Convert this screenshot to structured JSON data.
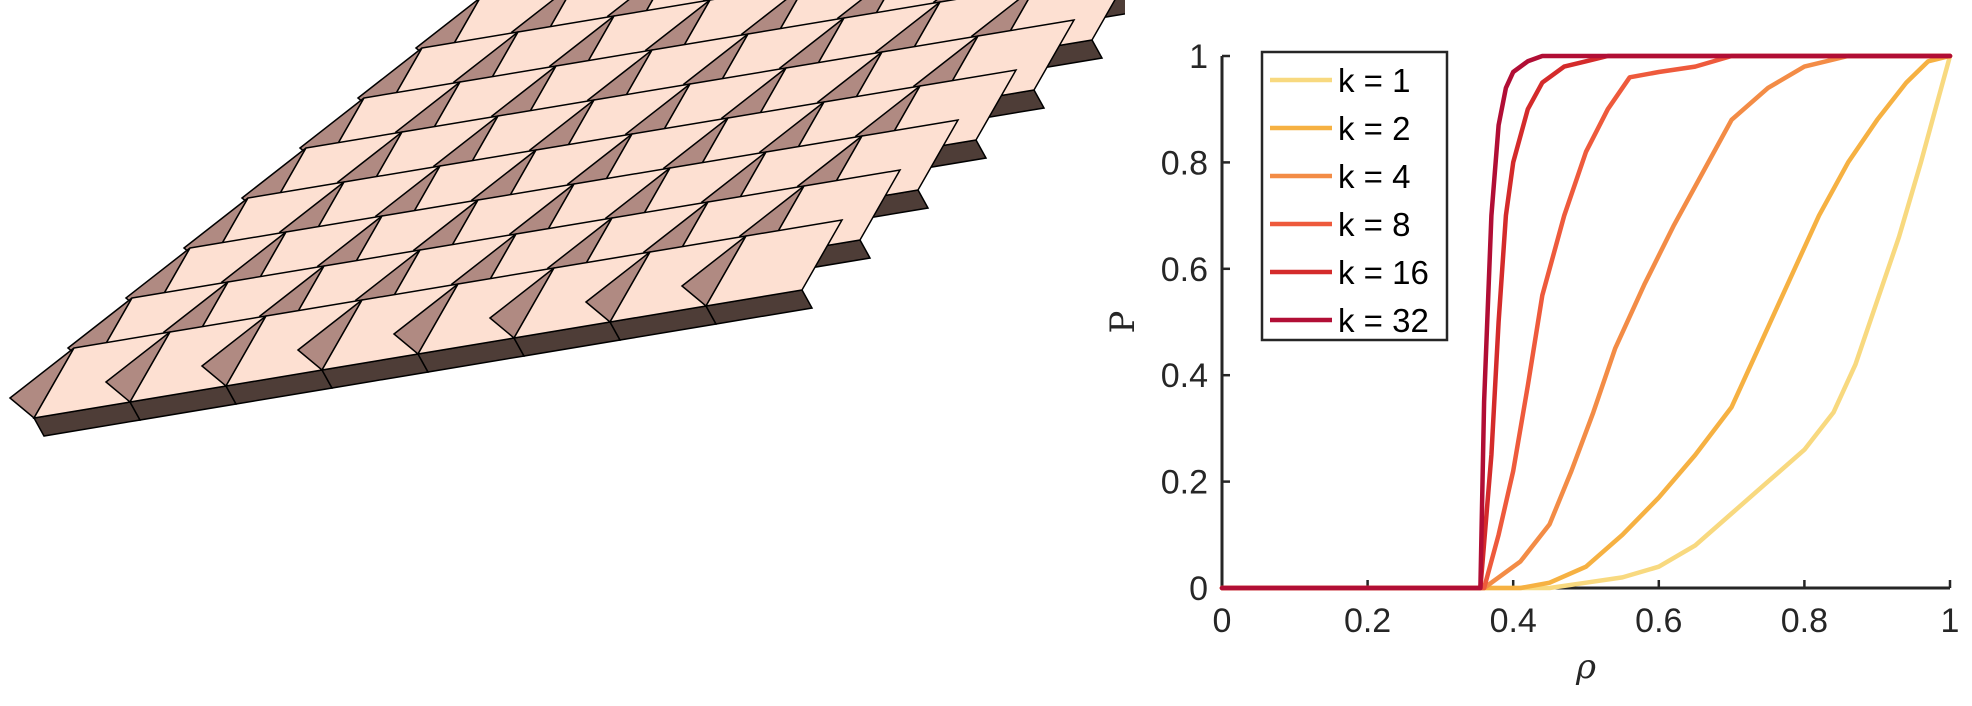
{
  "colors": {
    "light_face": "#fde0d2",
    "dark_face": "#b08a82",
    "shadow_face": "#4e3d37",
    "edge": "#000000",
    "axis": "#262626"
  },
  "chart_data": {
    "type": "line",
    "xlabel": "ρ",
    "ylabel": "P",
    "xlim": [
      0,
      1
    ],
    "ylim": [
      0,
      1
    ],
    "xticks": [
      "0",
      "0.2",
      "0.4",
      "0.6",
      "0.8",
      "1"
    ],
    "yticks": [
      "0",
      "0.2",
      "0.4",
      "0.6",
      "0.8",
      "1"
    ],
    "grid": false,
    "legend_position": "top-left",
    "series": [
      {
        "name": "k = 1",
        "color": "#f8d97f",
        "x": [
          0,
          0.45,
          0.5,
          0.55,
          0.6,
          0.65,
          0.7,
          0.75,
          0.8,
          0.84,
          0.87,
          0.9,
          0.93,
          0.96,
          0.98,
          1.0
        ],
        "y": [
          0,
          0,
          0.01,
          0.02,
          0.04,
          0.08,
          0.14,
          0.2,
          0.26,
          0.33,
          0.42,
          0.54,
          0.66,
          0.8,
          0.9,
          1.0
        ]
      },
      {
        "name": "k = 2",
        "color": "#f6b142",
        "x": [
          0,
          0.41,
          0.45,
          0.5,
          0.55,
          0.6,
          0.65,
          0.7,
          0.74,
          0.78,
          0.82,
          0.86,
          0.9,
          0.94,
          0.97,
          1.0
        ],
        "y": [
          0,
          0,
          0.01,
          0.04,
          0.1,
          0.17,
          0.25,
          0.34,
          0.46,
          0.58,
          0.7,
          0.8,
          0.88,
          0.95,
          0.99,
          1.0
        ]
      },
      {
        "name": "k = 4",
        "color": "#f38c46",
        "x": [
          0,
          0.36,
          0.38,
          0.41,
          0.45,
          0.48,
          0.51,
          0.54,
          0.58,
          0.62,
          0.66,
          0.7,
          0.75,
          0.8,
          0.86,
          1.0
        ],
        "y": [
          0,
          0,
          0.02,
          0.05,
          0.12,
          0.22,
          0.33,
          0.45,
          0.57,
          0.68,
          0.78,
          0.88,
          0.94,
          0.98,
          1.0,
          1.0
        ]
      },
      {
        "name": "k = 8",
        "color": "#ee5a3c",
        "x": [
          0,
          0.36,
          0.38,
          0.4,
          0.42,
          0.44,
          0.47,
          0.5,
          0.53,
          0.56,
          0.6,
          0.65,
          0.7,
          0.75,
          1.0
        ],
        "y": [
          0,
          0,
          0.1,
          0.22,
          0.38,
          0.55,
          0.7,
          0.82,
          0.9,
          0.96,
          0.97,
          0.98,
          1.0,
          1.0,
          1.0
        ]
      },
      {
        "name": "k = 16",
        "color": "#d42b2b",
        "x": [
          0,
          0.355,
          0.37,
          0.38,
          0.39,
          0.4,
          0.42,
          0.44,
          0.47,
          0.5,
          0.53,
          1.0
        ],
        "y": [
          0,
          0,
          0.25,
          0.5,
          0.7,
          0.8,
          0.9,
          0.95,
          0.98,
          0.99,
          1.0,
          1.0
        ]
      },
      {
        "name": "k = 32",
        "color": "#b10e35",
        "x": [
          0,
          0.355,
          0.36,
          0.37,
          0.38,
          0.39,
          0.4,
          0.42,
          0.44,
          1.0
        ],
        "y": [
          0,
          0,
          0.35,
          0.7,
          0.87,
          0.94,
          0.97,
          0.99,
          1.0,
          1.0
        ]
      }
    ]
  }
}
